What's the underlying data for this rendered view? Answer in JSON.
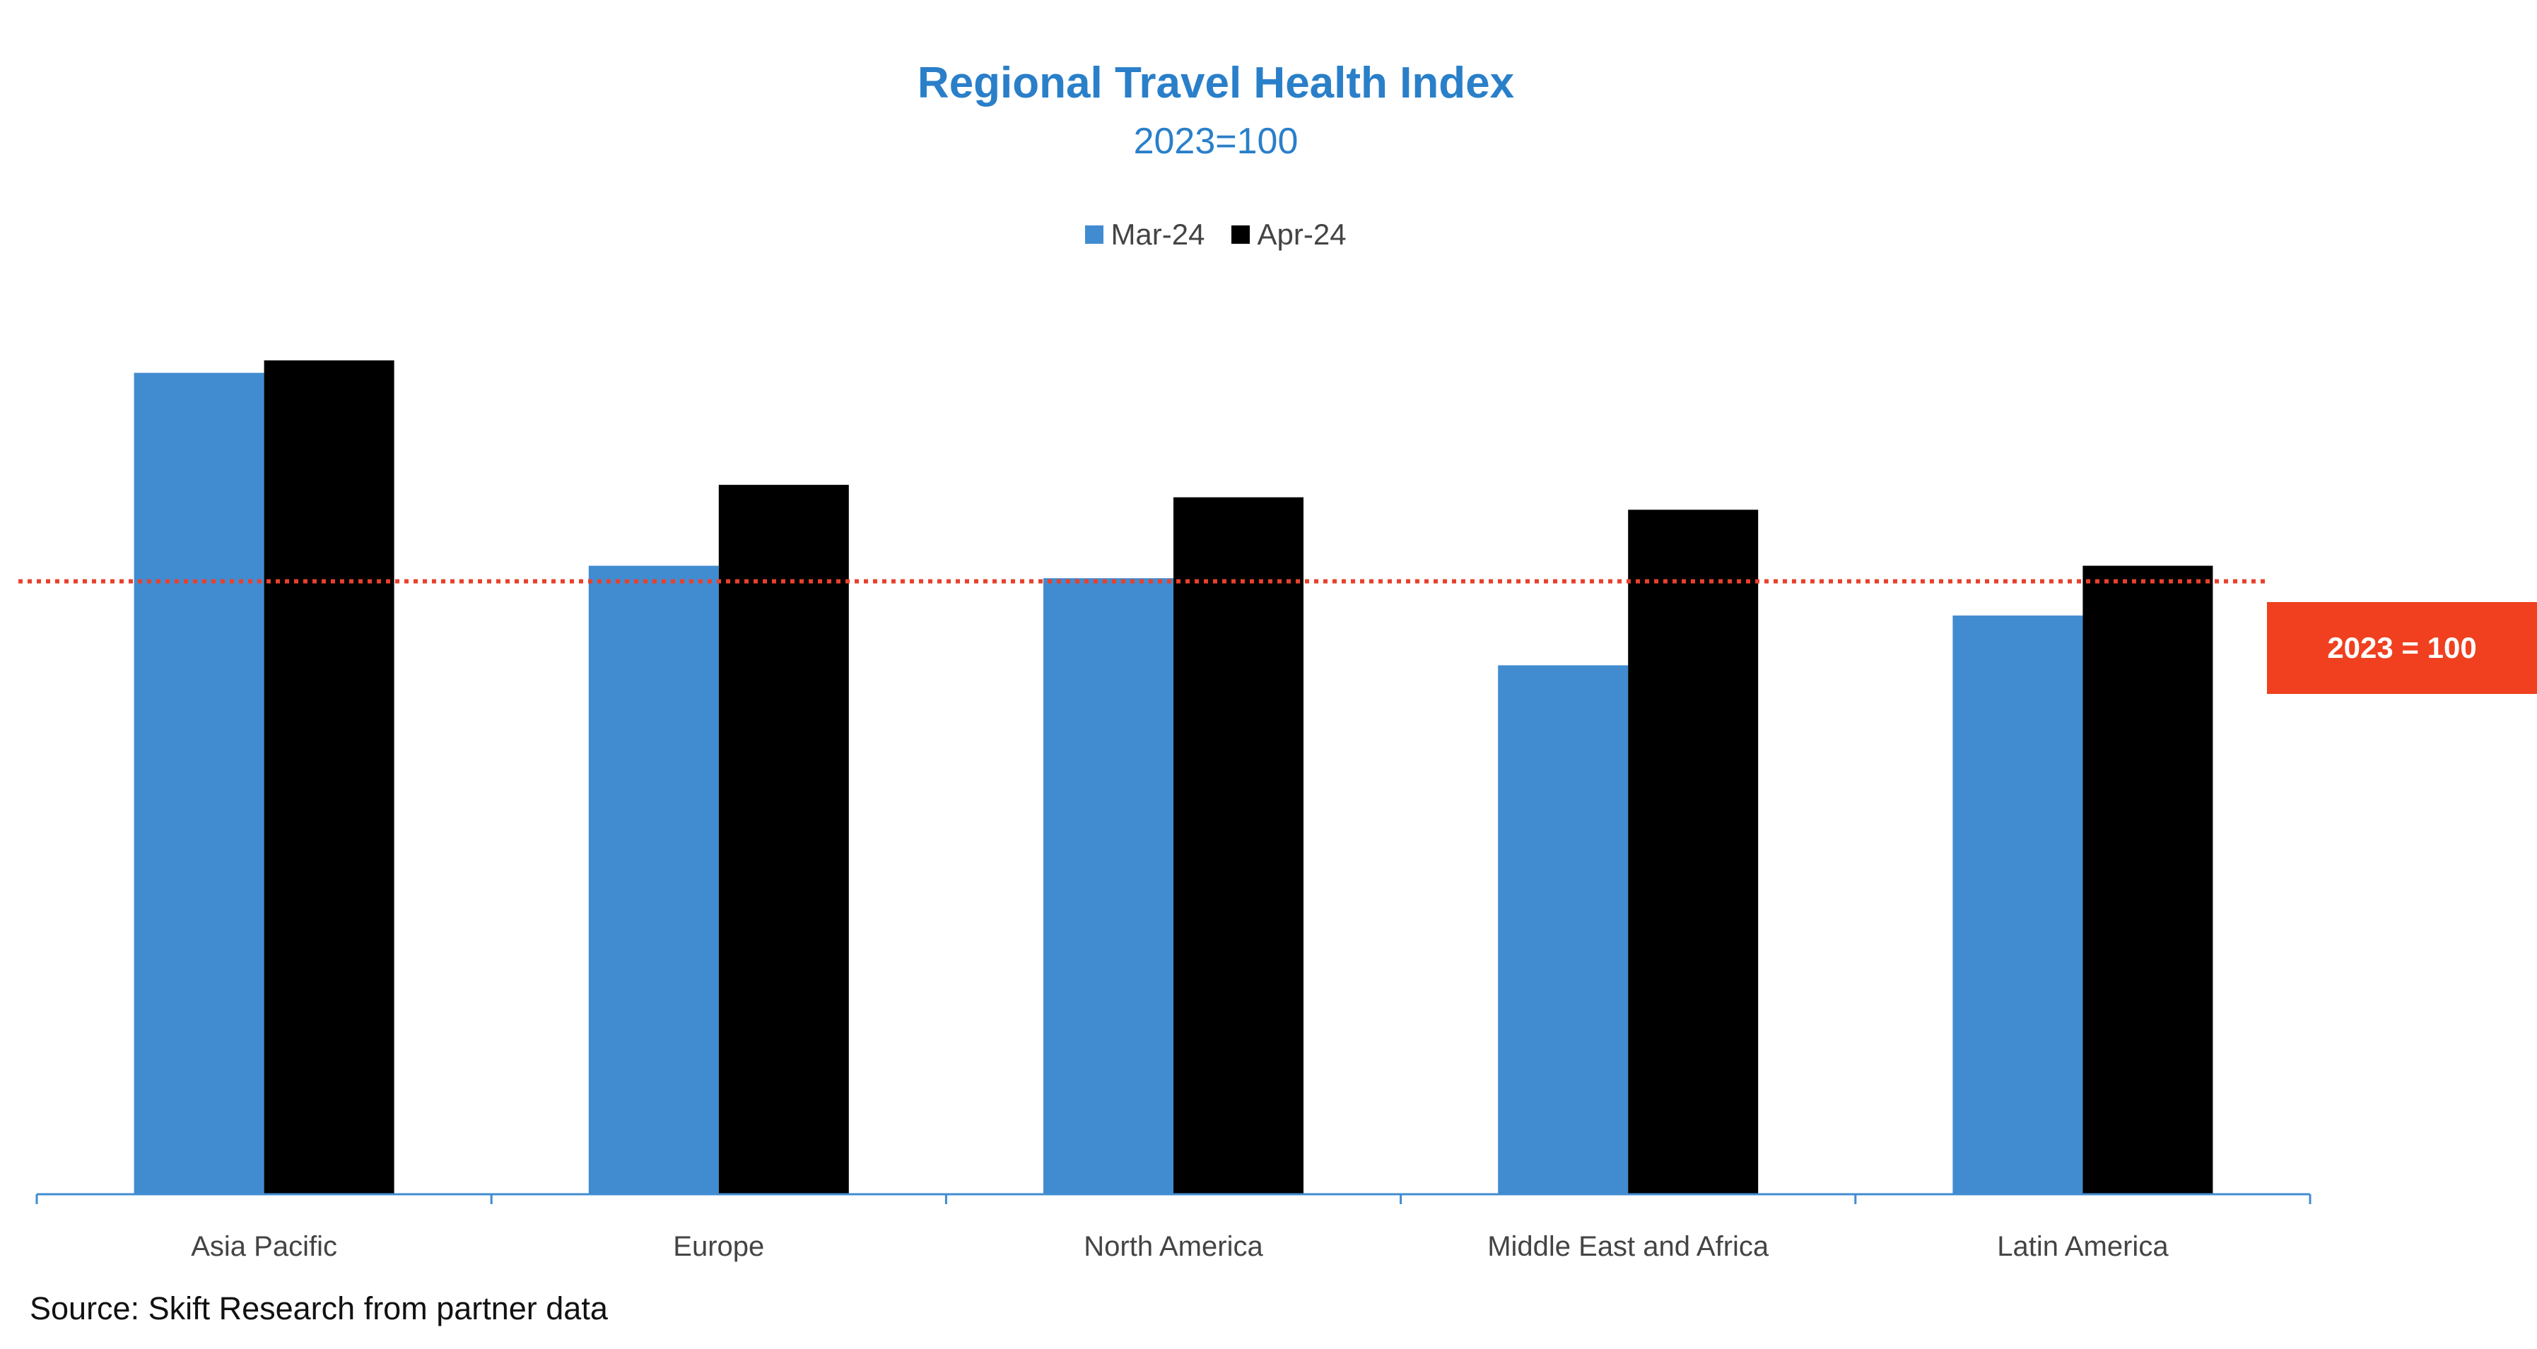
{
  "chart_data": {
    "type": "bar",
    "title": "Regional Travel Health Index",
    "subtitle": "2023=100",
    "categories": [
      "Asia Pacific",
      "Europe",
      "North America",
      "Middle East and Africa",
      "Latin America"
    ],
    "series": [
      {
        "name": "Mar-24",
        "color": "#418cd1",
        "values": [
          132,
          101,
          99,
          85,
          93
        ]
      },
      {
        "name": "Apr-24",
        "color": "#000000",
        "values": [
          134,
          114,
          112,
          110,
          101
        ]
      }
    ],
    "xlabel": "",
    "ylabel": "",
    "ylim": [
      0,
      200
    ],
    "grid": false,
    "legend": "top-center",
    "reference_line": {
      "value": 98.5,
      "color": "#e8412b",
      "style": "dotted",
      "label": "2023 = 100"
    }
  },
  "source": "Source: Skift Research from partner data"
}
